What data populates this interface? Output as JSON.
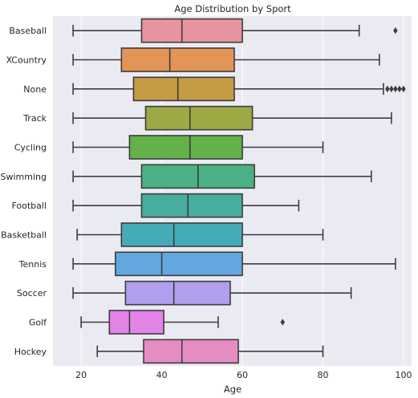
{
  "chart_data": {
    "type": "box",
    "title": "Age Distribution by Sport",
    "xlabel": "Age",
    "ylabel": "",
    "xlim": [
      13,
      102
    ],
    "xticks": [
      20,
      40,
      60,
      80,
      100
    ],
    "grid": true,
    "orientation": "horizontal",
    "categories": [
      "Baseball",
      "XCountry",
      "None",
      "Track",
      "Cycling",
      "Swimming",
      "Football",
      "Basketball",
      "Tennis",
      "Soccer",
      "Golf",
      "Hockey"
    ],
    "boxes": [
      {
        "label": "Baseball",
        "whisker_low": 18,
        "q1": 35,
        "median": 45,
        "q3": 60,
        "whisker_high": 89,
        "outliers": [
          98
        ],
        "color": "#e8949f"
      },
      {
        "label": "XCountry",
        "whisker_low": 18,
        "q1": 30,
        "median": 42,
        "q3": 58,
        "whisker_high": 94,
        "outliers": [],
        "color": "#e29556"
      },
      {
        "label": "None",
        "whisker_low": 18,
        "q1": 33,
        "median": 44,
        "q3": 58,
        "whisker_high": 95,
        "outliers": [
          96,
          97,
          98,
          99,
          100
        ],
        "color": "#c49a45"
      },
      {
        "label": "Track",
        "whisker_low": 18,
        "q1": 36,
        "median": 47,
        "q3": 62.5,
        "whisker_high": 97,
        "outliers": [],
        "color": "#9ea945"
      },
      {
        "label": "Cycling",
        "whisker_low": 18,
        "q1": 32,
        "median": 47,
        "q3": 60,
        "whisker_high": 80,
        "outliers": [],
        "color": "#64b049"
      },
      {
        "label": "Swimming",
        "whisker_low": 18,
        "q1": 35,
        "median": 49,
        "q3": 63,
        "whisker_high": 92,
        "outliers": [],
        "color": "#4bb184"
      },
      {
        "label": "Football",
        "whisker_low": 18,
        "q1": 35,
        "median": 46.5,
        "q3": 60,
        "whisker_high": 74,
        "outliers": [],
        "color": "#46ad9f"
      },
      {
        "label": "Basketball",
        "whisker_low": 19,
        "q1": 30,
        "median": 43,
        "q3": 60,
        "whisker_high": 80,
        "outliers": [],
        "color": "#46abb8"
      },
      {
        "label": "Tennis",
        "whisker_low": 18,
        "q1": 28.5,
        "median": 40,
        "q3": 60,
        "whisker_high": 98,
        "outliers": [],
        "color": "#62a7e0"
      },
      {
        "label": "Soccer",
        "whisker_low": 18,
        "q1": 31,
        "median": 43,
        "q3": 57,
        "whisker_high": 87,
        "outliers": [],
        "color": "#b09eee"
      },
      {
        "label": "Golf",
        "whisker_low": 20,
        "q1": 27,
        "median": 32,
        "q3": 40.5,
        "whisker_high": 54,
        "outliers": [
          70
        ],
        "color": "#e184e8"
      },
      {
        "label": "Hockey",
        "whisker_low": 24,
        "q1": 35.5,
        "median": 45,
        "q3": 59,
        "whisker_high": 80,
        "outliers": [],
        "color": "#e58dc2"
      }
    ]
  }
}
